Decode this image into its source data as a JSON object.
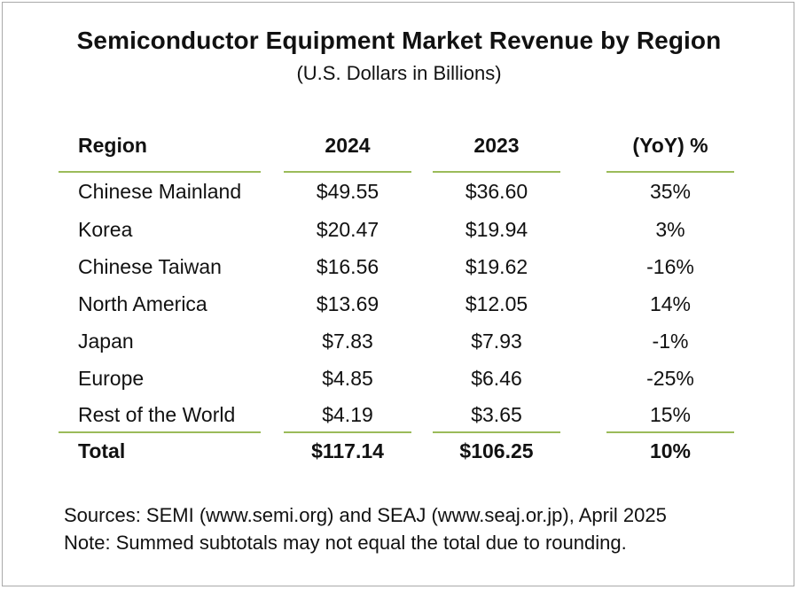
{
  "title": "Semiconductor Equipment Market Revenue by Region",
  "subtitle": "(U.S. Dollars in Billions)",
  "colors": {
    "rule": "#9bbb59",
    "border": "#a9a9a9",
    "text": "#111111"
  },
  "table": {
    "headers": [
      "Region",
      "2024",
      "2023",
      "(YoY) %"
    ],
    "rows": [
      {
        "region": "Chinese Mainland",
        "y2024": "$49.55",
        "y2023": "$36.60",
        "yoy": "35%"
      },
      {
        "region": "Korea",
        "y2024": "$20.47",
        "y2023": "$19.94",
        "yoy": "3%"
      },
      {
        "region": "Chinese Taiwan",
        "y2024": "$16.56",
        "y2023": "$19.62",
        "yoy": "-16%"
      },
      {
        "region": "North America",
        "y2024": "$13.69",
        "y2023": "$12.05",
        "yoy": "14%"
      },
      {
        "region": "Japan",
        "y2024": "$7.83",
        "y2023": "$7.93",
        "yoy": "-1%"
      },
      {
        "region": "Europe",
        "y2024": "$4.85",
        "y2023": "$6.46",
        "yoy": "-25%"
      },
      {
        "region": "Rest of the World",
        "y2024": "$4.19",
        "y2023": "$3.65",
        "yoy": "15%"
      }
    ],
    "total": {
      "region": "Total",
      "y2024": "$117.14",
      "y2023": "$106.25",
      "yoy": "10%"
    }
  },
  "notes": [
    "Sources: SEMI (www.semi.org) and SEAJ (www.seaj.or.jp), April 2025",
    "Note: Summed subtotals may not equal the total due to rounding."
  ]
}
